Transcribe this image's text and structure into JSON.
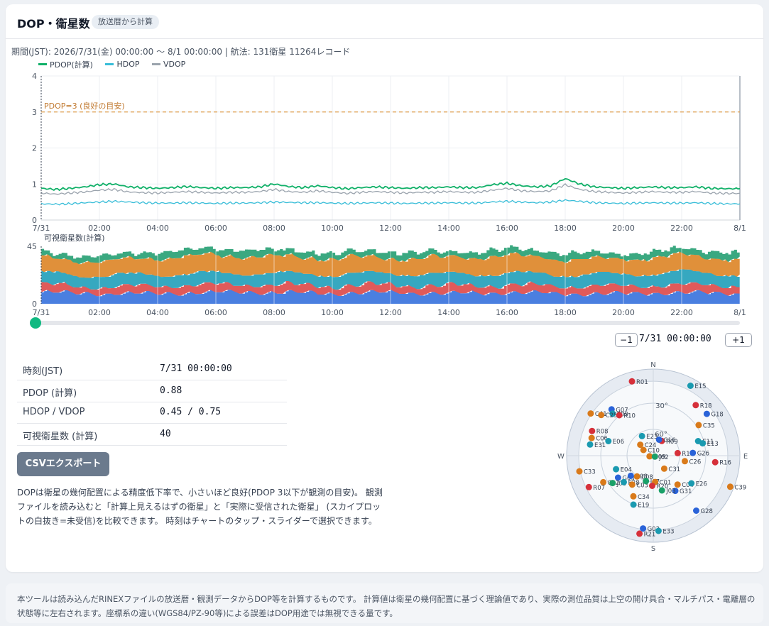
{
  "header": {
    "title": "DOP・衛星数",
    "badge": "放送暦から計算"
  },
  "period_text": "期間(JST): 2026/7/31(金) 00:00:00 〜 8/1 00:00:00 | 航法: 131衛星 11264レコード",
  "legend": [
    {
      "label": "PDOP(計算)",
      "color": "#10b068"
    },
    {
      "label": "HDOP",
      "color": "#38bdd8"
    },
    {
      "label": "VDOP",
      "color": "#9aa3ad"
    }
  ],
  "x_ticks": [
    "7/31",
    "02:00",
    "04:00",
    "06:00",
    "08:00",
    "10:00",
    "12:00",
    "14:00",
    "16:00",
    "18:00",
    "20:00",
    "22:00",
    "8/1"
  ],
  "chart_data": [
    {
      "type": "line",
      "title": "",
      "xlabel": "",
      "ylabel": "",
      "ylim": [
        0,
        4
      ],
      "y_ticks": [
        "0",
        "1",
        "2",
        "3",
        "4"
      ],
      "x_range": [
        "7/31 00:00",
        "8/1 00:00"
      ],
      "grid": true,
      "legend_position": "top-left",
      "annotation": {
        "label": "PDOP=3 (良好の目安)",
        "y": 3,
        "color": "#e0a050"
      },
      "x": [
        "00:00",
        "00:30",
        "01:00",
        "01:30",
        "02:00",
        "02:30",
        "03:00",
        "03:30",
        "04:00",
        "04:30",
        "05:00",
        "05:30",
        "06:00",
        "06:30",
        "07:00",
        "07:30",
        "08:00",
        "08:30",
        "09:00",
        "09:30",
        "10:00",
        "10:30",
        "11:00",
        "11:30",
        "12:00",
        "12:30",
        "13:00",
        "13:30",
        "14:00",
        "14:30",
        "15:00",
        "15:30",
        "16:00",
        "16:30",
        "17:00",
        "17:30",
        "18:00",
        "18:30",
        "19:00",
        "19:30",
        "20:00",
        "20:30",
        "21:00",
        "21:30",
        "22:00",
        "22:30",
        "23:00",
        "23:30",
        "24:00"
      ],
      "series": [
        {
          "name": "PDOP(計算)",
          "color": "#10b068",
          "values": [
            0.88,
            0.85,
            0.88,
            0.92,
            0.98,
            1.0,
            0.92,
            0.9,
            0.88,
            0.9,
            0.93,
            0.9,
            0.88,
            0.9,
            0.9,
            0.92,
            1.0,
            0.93,
            0.9,
            0.95,
            0.9,
            0.87,
            0.9,
            0.92,
            0.9,
            0.88,
            0.9,
            0.9,
            0.92,
            0.9,
            0.9,
            0.98,
            1.02,
            0.95,
            0.92,
            0.95,
            1.15,
            1.0,
            0.92,
            0.9,
            0.88,
            0.9,
            0.92,
            0.9,
            0.9,
            0.92,
            0.88,
            0.87,
            0.87
          ]
        },
        {
          "name": "HDOP",
          "color": "#38bdd8",
          "values": [
            0.45,
            0.44,
            0.45,
            0.48,
            0.5,
            0.52,
            0.5,
            0.48,
            0.47,
            0.47,
            0.48,
            0.47,
            0.46,
            0.47,
            0.47,
            0.48,
            0.5,
            0.49,
            0.48,
            0.48,
            0.47,
            0.46,
            0.47,
            0.48,
            0.47,
            0.46,
            0.47,
            0.47,
            0.48,
            0.47,
            0.47,
            0.5,
            0.52,
            0.5,
            0.48,
            0.5,
            0.55,
            0.52,
            0.48,
            0.47,
            0.46,
            0.47,
            0.48,
            0.47,
            0.47,
            0.48,
            0.46,
            0.45,
            0.45
          ]
        },
        {
          "name": "VDOP",
          "color": "#9aa3ad",
          "values": [
            0.75,
            0.72,
            0.75,
            0.78,
            0.83,
            0.85,
            0.78,
            0.76,
            0.75,
            0.77,
            0.79,
            0.77,
            0.75,
            0.77,
            0.77,
            0.79,
            0.85,
            0.79,
            0.77,
            0.81,
            0.77,
            0.74,
            0.77,
            0.79,
            0.77,
            0.75,
            0.77,
            0.77,
            0.79,
            0.77,
            0.77,
            0.83,
            0.88,
            0.81,
            0.79,
            0.81,
            0.98,
            0.85,
            0.79,
            0.77,
            0.75,
            0.77,
            0.79,
            0.77,
            0.77,
            0.79,
            0.75,
            0.74,
            0.74
          ]
        }
      ]
    },
    {
      "type": "area",
      "title": "可視衛星数(計算)",
      "ylim": [
        0,
        45
      ],
      "y_ticks": [
        "0",
        "45"
      ],
      "stacked": true,
      "x_range": [
        "7/31 00:00",
        "8/1 00:00"
      ],
      "x": [
        "00:00",
        "02:00",
        "04:00",
        "06:00",
        "08:00",
        "10:00",
        "12:00",
        "14:00",
        "16:00",
        "18:00",
        "20:00",
        "22:00",
        "24:00"
      ],
      "series": [
        {
          "color": "#4a7fe0",
          "values": [
            9,
            8,
            8,
            9,
            9,
            8,
            9,
            8,
            9,
            8,
            8,
            9,
            8
          ]
        },
        {
          "color": "#e05a5a",
          "values": [
            6,
            5,
            6,
            6,
            6,
            6,
            6,
            6,
            6,
            6,
            6,
            6,
            6
          ]
        },
        {
          "color": "#36a8c0",
          "values": [
            9,
            9,
            9,
            9,
            9,
            9,
            9,
            9,
            9,
            9,
            9,
            10,
            9
          ]
        },
        {
          "color": "#e0903a",
          "values": [
            12,
            11,
            13,
            14,
            13,
            13,
            12,
            13,
            14,
            12,
            12,
            13,
            12
          ]
        },
        {
          "color": "#3aa880",
          "values": [
            4,
            4,
            5,
            5,
            5,
            4,
            5,
            4,
            5,
            5,
            4,
            5,
            5
          ]
        }
      ]
    }
  ],
  "controls": {
    "minus_label": "−1",
    "plus_label": "+1",
    "time": "7/31 00:00:00"
  },
  "info": {
    "rows": [
      {
        "label": "時刻(JST)",
        "value": "7/31 00:00:00"
      },
      {
        "label": "PDOP (計算)",
        "value": "0.88"
      },
      {
        "label": "HDOP / VDOP",
        "value": "0.45 / 0.75"
      },
      {
        "label": "可視衛星数 (計算)",
        "value": "40"
      }
    ]
  },
  "csv_button": "CSVエクスポート",
  "description": "DOPは衛星の幾何配置による精度低下率で、小さいほど良好(PDOP 3以下が観測の目安)。 観測ファイルを読み込むと「計算上見えるはずの衛星」と「実際に受信された衛星」 (スカイプロットの白抜き=未受信)を比較できます。 時刻はチャートのタップ・スライダーで選択できます。",
  "skyplot": {
    "directions": {
      "n": "N",
      "e": "E",
      "s": "S",
      "w": "W"
    },
    "elev_labels": [
      "30°",
      "60°"
    ],
    "colors": {
      "G": "#2a63d8",
      "R": "#d6303a",
      "E": "#1a9ab0",
      "C": "#d97a1a",
      "J": "#1aa068"
    },
    "satellites": [
      {
        "id": "R01",
        "az": 344,
        "el": 8
      },
      {
        "id": "E15",
        "az": 28,
        "el": 6
      },
      {
        "id": "R18",
        "az": 40,
        "el": 20
      },
      {
        "id": "G18",
        "az": 52,
        "el": 18
      },
      {
        "id": "G07",
        "az": 318,
        "el": 24
      },
      {
        "id": "E09",
        "az": 316,
        "el": 28
      },
      {
        "id": "C41",
        "az": 304,
        "el": 10
      },
      {
        "id": "C25",
        "az": 308,
        "el": 20
      },
      {
        "id": "R10",
        "az": 320,
        "el": 34
      },
      {
        "id": "C35",
        "az": 56,
        "el": 32
      },
      {
        "id": "R08",
        "az": 292,
        "el": 20
      },
      {
        "id": "C06",
        "az": 286,
        "el": 22
      },
      {
        "id": "E06",
        "az": 288,
        "el": 40
      },
      {
        "id": "E31",
        "az": 280,
        "el": 22
      },
      {
        "id": "E23",
        "az": 330,
        "el": 66
      },
      {
        "id": "R09",
        "az": 30,
        "el": 72
      },
      {
        "id": "G16",
        "az": 20,
        "el": 72
      },
      {
        "id": "E11",
        "az": 72,
        "el": 40
      },
      {
        "id": "E13",
        "az": 76,
        "el": 36
      },
      {
        "id": "C24",
        "az": 310,
        "el": 72
      },
      {
        "id": "C10",
        "az": 300,
        "el": 78
      },
      {
        "id": "R19",
        "az": 84,
        "el": 64
      },
      {
        "id": "G26",
        "az": 86,
        "el": 48
      },
      {
        "id": "C09",
        "az": 260,
        "el": 86
      },
      {
        "id": "J02",
        "az": 120,
        "el": 88
      },
      {
        "id": "R16",
        "az": 96,
        "el": 24
      },
      {
        "id": "C26",
        "az": 100,
        "el": 56
      },
      {
        "id": "E04",
        "az": 250,
        "el": 48
      },
      {
        "id": "C31",
        "az": 140,
        "el": 72
      },
      {
        "id": "C33",
        "az": 258,
        "el": 10
      },
      {
        "id": "G03",
        "az": 238,
        "el": 46
      },
      {
        "id": "G08",
        "az": 228,
        "el": 58
      },
      {
        "id": "C02",
        "az": 242,
        "el": 30
      },
      {
        "id": "J08",
        "az": 236,
        "el": 38
      },
      {
        "id": "C08",
        "az": 218,
        "el": 62
      },
      {
        "id": "E28",
        "az": 228,
        "el": 48
      },
      {
        "id": "R07",
        "az": 244,
        "el": 14
      },
      {
        "id": "C03",
        "az": 216,
        "el": 52
      },
      {
        "id": "J07",
        "az": 196,
        "el": 62
      },
      {
        "id": "C01",
        "az": 176,
        "el": 62
      },
      {
        "id": "C04",
        "az": 140,
        "el": 50
      },
      {
        "id": "E26",
        "az": 126,
        "el": 40
      },
      {
        "id": "C39",
        "az": 112,
        "el": 2
      },
      {
        "id": "R20",
        "az": 182,
        "el": 58
      },
      {
        "id": "G31",
        "az": 148,
        "el": 46
      },
      {
        "id": "J03",
        "az": 166,
        "el": 52
      },
      {
        "id": "C34",
        "az": 206,
        "el": 42
      },
      {
        "id": "E19",
        "az": 202,
        "el": 34
      },
      {
        "id": "G28",
        "az": 142,
        "el": 16
      },
      {
        "id": "G02",
        "az": 188,
        "el": 12
      },
      {
        "id": "E33",
        "az": 176,
        "el": 10
      },
      {
        "id": "R21",
        "az": 190,
        "el": 6
      }
    ]
  },
  "footer": "本ツールは読み込んだRINEXファイルの放送暦・観測データからDOP等を計算するものです。 計算値は衛星の幾何配置に基づく理論値であり、実際の測位品質は上空の開け具合・マルチパス・電離層の状態等に左右されます。座標系の違い(WGS84/PZ-90等)による誤差はDOP用途では無視できる量です。"
}
